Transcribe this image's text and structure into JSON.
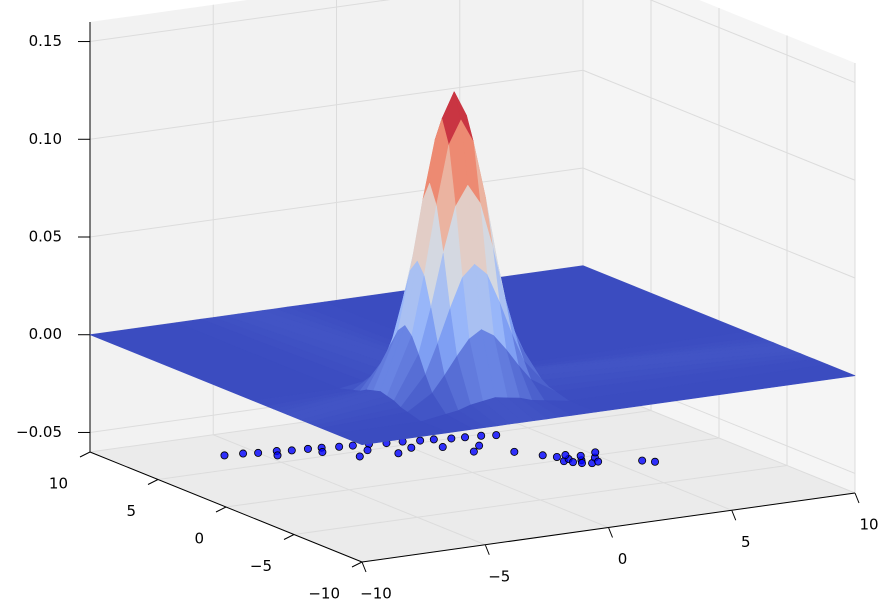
{
  "chart_data": {
    "type": "surface3d",
    "x": [
      -10,
      -6.5,
      -5.5,
      -5,
      -4.5,
      -4,
      -3.5,
      -3,
      -2.5,
      -2,
      -1.5,
      -0.5,
      10
    ],
    "y": [
      -10,
      -8,
      -7,
      -6.5,
      -6,
      -5.5,
      -5,
      -4.5,
      -4,
      -3.5,
      -3,
      -2,
      10
    ],
    "z": [
      [
        0,
        0,
        0,
        0,
        0,
        0,
        0,
        0,
        0,
        0,
        0,
        0,
        0
      ],
      [
        0,
        0,
        0.002,
        0.003,
        0.005,
        0.006,
        0.007,
        0.006,
        0.005,
        0.003,
        0.002,
        0,
        0
      ],
      [
        0,
        0.002,
        0.01,
        0.018,
        0.027,
        0.035,
        0.039,
        0.035,
        0.027,
        0.018,
        0.01,
        0.002,
        0
      ],
      [
        0,
        0.003,
        0.018,
        0.033,
        0.05,
        0.065,
        0.071,
        0.065,
        0.05,
        0.033,
        0.018,
        0.003,
        0
      ],
      [
        0,
        0.005,
        0.027,
        0.05,
        0.077,
        0.1,
        0.11,
        0.1,
        0.077,
        0.05,
        0.027,
        0.005,
        0
      ],
      [
        0,
        0.006,
        0.035,
        0.065,
        0.1,
        0.13,
        0.142,
        0.13,
        0.1,
        0.065,
        0.035,
        0.006,
        0
      ],
      [
        0,
        0.007,
        0.039,
        0.071,
        0.11,
        0.142,
        0.155,
        0.142,
        0.11,
        0.071,
        0.039,
        0.007,
        0
      ],
      [
        0,
        0.006,
        0.035,
        0.065,
        0.1,
        0.13,
        0.142,
        0.13,
        0.1,
        0.065,
        0.035,
        0.006,
        0
      ],
      [
        0,
        0.005,
        0.027,
        0.05,
        0.077,
        0.1,
        0.11,
        0.1,
        0.077,
        0.05,
        0.027,
        0.005,
        0
      ],
      [
        0,
        0.003,
        0.018,
        0.033,
        0.05,
        0.065,
        0.071,
        0.065,
        0.05,
        0.033,
        0.018,
        0.003,
        0
      ],
      [
        0,
        0.002,
        0.01,
        0.018,
        0.027,
        0.035,
        0.039,
        0.035,
        0.027,
        0.018,
        0.01,
        0.002,
        0
      ],
      [
        0,
        0,
        0.002,
        0.003,
        0.005,
        0.006,
        0.007,
        0.006,
        0.005,
        0.003,
        0.002,
        0,
        0
      ],
      [
        0,
        0,
        0,
        0,
        0,
        0,
        0,
        0,
        0,
        0,
        0,
        0,
        0
      ]
    ],
    "colormap": "coolwarm",
    "scatter": {
      "color": "#0000ff",
      "x": [
        -6.2,
        -5.5,
        -5.0,
        -4.3,
        -3.8,
        -3.2,
        -2.7,
        -2.1,
        -1.6,
        -1.0,
        -0.4,
        0.2,
        0.8,
        1.3,
        1.9,
        2.4,
        3.0,
        3.5,
        2.2,
        1.0,
        0.0,
        -1.5,
        -3.0,
        3.6,
        3.9,
        4.2,
        4.5,
        4.0,
        3.7,
        4.3,
        4.8,
        3.4,
        4.1,
        4.6,
        3.8,
        5.2,
        6.3,
        6.0,
        2.8,
        1.6,
        -0.8,
        -2.2,
        -4.6
      ],
      "y": [
        7.0,
        6.9,
        6.7,
        6.6,
        6.4,
        6.3,
        6.2,
        6.0,
        5.9,
        5.8,
        5.6,
        5.5,
        5.3,
        5.2,
        5.0,
        4.9,
        4.8,
        4.6,
        3.5,
        4.0,
        4.5,
        5.0,
        5.6,
        -0.2,
        0.0,
        -0.4,
        0.2,
        -0.8,
        0.5,
        -1.0,
        -0.3,
        1.0,
        0.6,
        -0.9,
        -0.5,
        0.4,
        -2.0,
        -1.6,
        2.0,
        2.8,
        4.0,
        4.3,
        6.0
      ]
    },
    "xlim": [
      -10,
      10
    ],
    "ylim": [
      -10,
      10
    ],
    "zlim": [
      -0.06,
      0.16
    ],
    "xticks": [
      {
        "value": -10,
        "label": "−10"
      },
      {
        "value": -5,
        "label": "−5"
      },
      0,
      5,
      10
    ],
    "yticks": [
      {
        "value": -10,
        "label": "−10"
      },
      {
        "value": -5,
        "label": "−5"
      },
      0,
      5,
      10
    ],
    "zticks": [
      {
        "value": -0.05,
        "label": "−0.05"
      },
      {
        "value": 0,
        "label": "0.00"
      },
      0.05,
      {
        "value": 0.1,
        "label": "0.10"
      },
      0.15
    ],
    "grid": true
  }
}
